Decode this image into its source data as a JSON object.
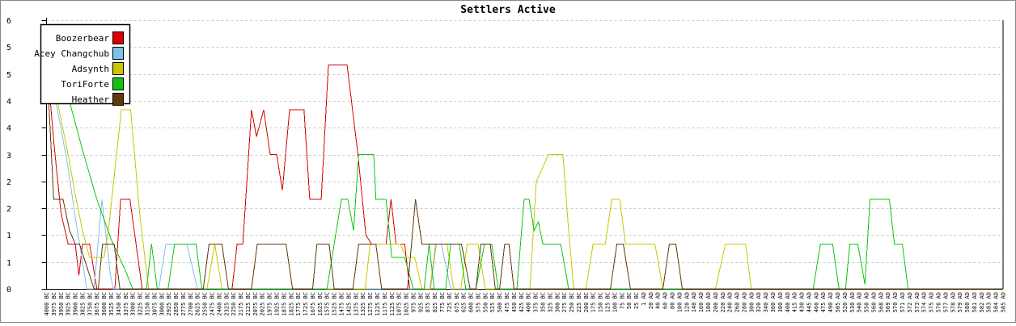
{
  "title": "Settlers Active",
  "chart_data": {
    "type": "line",
    "title": "Settlers Active",
    "grid": "horizontal-dashed",
    "legend_position": "top-left",
    "colors": {
      "grid": "#c9c9c9",
      "axis": "#000000",
      "frame": "#888888",
      "background": "#ffffff"
    },
    "y_axis": {
      "min": 0,
      "max": 6,
      "tick_values": [
        0,
        0.6,
        1.2,
        1.8,
        2.4,
        3.0,
        3.6,
        4.2,
        4.8,
        5.4,
        6.0
      ],
      "tick_labels": [
        "0",
        "1",
        "1",
        "2",
        "2",
        "3",
        "4",
        "4",
        "5",
        "5",
        "6"
      ]
    },
    "x_tick_labels": [
      "4000 BC",
      "3975 BC",
      "3950 BC",
      "3925 BC",
      "3900 BC",
      "3825 BC",
      "3750 BC",
      "3675 BC",
      "3600 BC",
      "3525 BC",
      "3450 BC",
      "3375 BC",
      "3300 BC",
      "3225 BC",
      "3150 BC",
      "3075 BC",
      "3000 BC",
      "2925 BC",
      "2850 BC",
      "2775 BC",
      "2700 BC",
      "2625 BC",
      "2550 BC",
      "2475 BC",
      "2400 BC",
      "2325 BC",
      "2250 BC",
      "2175 BC",
      "2125 BC",
      "2075 BC",
      "2025 BC",
      "1975 BC",
      "1925 BC",
      "1875 BC",
      "1825 BC",
      "1775 BC",
      "1725 BC",
      "1675 BC",
      "1625 BC",
      "1575 BC",
      "1525 BC",
      "1475 BC",
      "1425 BC",
      "1375 BC",
      "1325 BC",
      "1275 BC",
      "1225 BC",
      "1175 BC",
      "1125 BC",
      "1075 BC",
      "1025 BC",
      "975 BC",
      "925 BC",
      "875 BC",
      "825 BC",
      "775 BC",
      "725 BC",
      "675 BC",
      "625 BC",
      "600 BC",
      "575 BC",
      "550 BC",
      "525 BC",
      "500 BC",
      "475 BC",
      "450 BC",
      "425 BC",
      "400 BC",
      "375 BC",
      "350 BC",
      "325 BC",
      "300 BC",
      "275 BC",
      "250 BC",
      "225 BC",
      "200 BC",
      "175 BC",
      "150 BC",
      "125 BC",
      "100 BC",
      "75 BC",
      "50 BC",
      "25 BC",
      "1 AD",
      "20 AD",
      "40 AD",
      "60 AD",
      "80 AD",
      "100 AD",
      "120 AD",
      "140 AD",
      "160 AD",
      "180 AD",
      "200 AD",
      "220 AD",
      "240 AD",
      "260 AD",
      "280 AD",
      "300 AD",
      "320 AD",
      "340 AD",
      "360 AD",
      "380 AD",
      "400 AD",
      "415 AD",
      "430 AD",
      "445 AD",
      "460 AD",
      "475 AD",
      "490 AD",
      "505 AD",
      "520 AD",
      "530 AD",
      "540 AD",
      "550 AD",
      "560 AD",
      "568 AD",
      "569 AD",
      "570 AD",
      "571 AD",
      "572 AD",
      "573 AD",
      "574 AD",
      "575 AD",
      "576 AD",
      "577 AD",
      "578 AD",
      "579 AD",
      "580 AD",
      "581 AD",
      "582 AD",
      "583 AD",
      "584 AD",
      "585 AD"
    ],
    "series": [
      {
        "name": "Boozerbear",
        "color": "#dd0000",
        "points": [
          [
            0,
            5.2
          ],
          [
            1,
            3.3
          ],
          [
            2,
            1.7
          ],
          [
            3,
            1
          ],
          [
            4,
            1
          ],
          [
            4.5,
            0.3
          ],
          [
            5,
            1
          ],
          [
            6,
            1
          ],
          [
            7,
            0
          ],
          [
            9.5,
            0
          ],
          [
            10.3,
            2
          ],
          [
            11.6,
            2
          ],
          [
            13.3,
            0
          ],
          [
            25.8,
            0
          ],
          [
            26.5,
            1
          ],
          [
            27.3,
            1
          ],
          [
            28.5,
            4
          ],
          [
            29.2,
            3.4
          ],
          [
            30.2,
            4
          ],
          [
            31.1,
            3
          ],
          [
            32,
            3
          ],
          [
            32.8,
            2.2
          ],
          [
            33.8,
            4
          ],
          [
            35.8,
            4
          ],
          [
            36.6,
            2
          ],
          [
            38.2,
            2
          ],
          [
            39.2,
            5
          ],
          [
            41.8,
            5
          ],
          [
            43.3,
            3
          ],
          [
            44.4,
            1.2
          ],
          [
            45.2,
            1
          ],
          [
            47.2,
            1
          ],
          [
            47.9,
            2
          ],
          [
            48.6,
            1
          ],
          [
            49.8,
            1
          ],
          [
            50.5,
            0
          ],
          [
            54,
            0
          ]
        ]
      },
      {
        "name": "Acey Changchub",
        "color": "#7ec2ea",
        "points": [
          [
            0,
            5.15
          ],
          [
            1,
            4.4
          ],
          [
            2,
            3.6
          ],
          [
            3,
            2.7
          ],
          [
            4,
            1.6
          ],
          [
            5,
            0.6
          ],
          [
            5.6,
            0
          ],
          [
            6.6,
            0
          ],
          [
            7.7,
            2
          ],
          [
            8.9,
            0.3
          ],
          [
            9.3,
            0
          ],
          [
            15.6,
            0
          ],
          [
            16.6,
            1
          ],
          [
            19.5,
            1
          ],
          [
            21,
            0
          ],
          [
            53.4,
            0
          ],
          [
            54.2,
            1
          ],
          [
            54.9,
            1
          ],
          [
            56.2,
            0
          ],
          [
            60,
            0
          ]
        ]
      },
      {
        "name": "Adsynth",
        "color": "#c8c800",
        "points": [
          [
            0,
            5.3
          ],
          [
            1,
            4.6
          ],
          [
            2,
            3.8
          ],
          [
            3,
            3
          ],
          [
            4,
            2.1
          ],
          [
            5,
            1.3
          ],
          [
            6,
            0.7
          ],
          [
            8,
            0.7
          ],
          [
            8.6,
            1.3
          ],
          [
            10.4,
            4
          ],
          [
            11.7,
            4
          ],
          [
            13,
            1.6
          ],
          [
            14.2,
            0
          ],
          [
            22.3,
            0
          ],
          [
            23.4,
            1
          ],
          [
            24.4,
            0
          ],
          [
            44.3,
            0
          ],
          [
            45,
            1
          ],
          [
            49.2,
            1
          ],
          [
            50,
            0.7
          ],
          [
            51.2,
            0.7
          ],
          [
            52.2,
            0
          ],
          [
            53.3,
            0
          ],
          [
            54.1,
            1
          ],
          [
            55.7,
            1
          ],
          [
            56.6,
            0
          ],
          [
            57.6,
            0
          ],
          [
            58.5,
            1
          ],
          [
            60,
            1
          ],
          [
            61,
            0
          ],
          [
            67.2,
            0
          ],
          [
            68.1,
            2.4
          ],
          [
            69.8,
            3
          ],
          [
            71.8,
            3
          ],
          [
            72.5,
            1.5
          ],
          [
            73.3,
            0
          ],
          [
            75,
            0
          ],
          [
            76,
            1
          ],
          [
            77.7,
            1
          ],
          [
            78.6,
            2
          ],
          [
            79.7,
            2
          ],
          [
            80.5,
            1
          ],
          [
            84.6,
            1
          ],
          [
            85.7,
            0
          ],
          [
            93,
            0
          ],
          [
            94.4,
            1
          ],
          [
            97.2,
            1
          ],
          [
            98,
            0
          ],
          [
            133,
            0
          ]
        ]
      },
      {
        "name": "ToriForte",
        "color": "#12c412",
        "points": [
          [
            0,
            5.3
          ],
          [
            1.6,
            5.3
          ],
          [
            3,
            4.3
          ],
          [
            5,
            3.1
          ],
          [
            7,
            2
          ],
          [
            9,
            1.1
          ],
          [
            11,
            0.4
          ],
          [
            12,
            0
          ],
          [
            13.9,
            0
          ],
          [
            14.6,
            1
          ],
          [
            15.4,
            0
          ],
          [
            16.9,
            0
          ],
          [
            17.8,
            1
          ],
          [
            20.8,
            1
          ],
          [
            21.6,
            0
          ],
          [
            39,
            0
          ],
          [
            41,
            2
          ],
          [
            41.9,
            2
          ],
          [
            42.7,
            1.3
          ],
          [
            43.4,
            3
          ],
          [
            45.5,
            3
          ],
          [
            45.8,
            2
          ],
          [
            47.2,
            2
          ],
          [
            48,
            0.7
          ],
          [
            49.8,
            0.7
          ],
          [
            51,
            0
          ],
          [
            52.5,
            0
          ],
          [
            53.2,
            1
          ],
          [
            53.9,
            0
          ],
          [
            55.5,
            0
          ],
          [
            56.2,
            1
          ],
          [
            57.4,
            1
          ],
          [
            58.3,
            0
          ],
          [
            59.7,
            0
          ],
          [
            60.9,
            1
          ],
          [
            61.9,
            1
          ],
          [
            62.8,
            0
          ],
          [
            65.4,
            0
          ],
          [
            66.4,
            2
          ],
          [
            67.1,
            2
          ],
          [
            67.8,
            1.3
          ],
          [
            68.4,
            1.5
          ],
          [
            69,
            1
          ],
          [
            71.5,
            1
          ],
          [
            72.6,
            0
          ],
          [
            106.6,
            0
          ],
          [
            107.6,
            1
          ],
          [
            109.3,
            1
          ],
          [
            110.2,
            0
          ],
          [
            111.1,
            0
          ],
          [
            111.7,
            1
          ],
          [
            112.8,
            1
          ],
          [
            113.8,
            0.1
          ],
          [
            114.5,
            2
          ],
          [
            117.2,
            2
          ],
          [
            117.9,
            1
          ],
          [
            119,
            1
          ],
          [
            119.8,
            0
          ],
          [
            133,
            0
          ]
        ]
      },
      {
        "name": "Heather",
        "color": "#5e3a0e",
        "points": [
          [
            0,
            5.15
          ],
          [
            0.5,
            3.6
          ],
          [
            1,
            2
          ],
          [
            2.3,
            2
          ],
          [
            3.2,
            1.3
          ],
          [
            4,
            1
          ],
          [
            4.6,
            1
          ],
          [
            5.4,
            0.6
          ],
          [
            6.6,
            0
          ],
          [
            7.2,
            0
          ],
          [
            7.8,
            1
          ],
          [
            9.4,
            1
          ],
          [
            10.2,
            0
          ],
          [
            21.8,
            0
          ],
          [
            22.6,
            1
          ],
          [
            24.4,
            1
          ],
          [
            25.3,
            0
          ],
          [
            28.5,
            0
          ],
          [
            29.3,
            1
          ],
          [
            33.3,
            1
          ],
          [
            34.2,
            0
          ],
          [
            37,
            0
          ],
          [
            37.6,
            1
          ],
          [
            39.3,
            1
          ],
          [
            40,
            0
          ],
          [
            42.6,
            0
          ],
          [
            43.4,
            1
          ],
          [
            45.8,
            1
          ],
          [
            46.6,
            0
          ],
          [
            50.2,
            0
          ],
          [
            51.3,
            2
          ],
          [
            52.2,
            1
          ],
          [
            57.7,
            1
          ],
          [
            58.9,
            0
          ],
          [
            59.7,
            0
          ],
          [
            60.4,
            1
          ],
          [
            61.7,
            1
          ],
          [
            62.4,
            0
          ],
          [
            63,
            0
          ],
          [
            63.7,
            1
          ],
          [
            64.3,
            1
          ],
          [
            65,
            0
          ],
          [
            78.4,
            0
          ],
          [
            79.3,
            1
          ],
          [
            80.2,
            1
          ],
          [
            81.2,
            0
          ],
          [
            85.7,
            0
          ],
          [
            86.6,
            1
          ],
          [
            87.5,
            1
          ],
          [
            88.4,
            0
          ],
          [
            133,
            0
          ]
        ]
      }
    ],
    "legend": [
      {
        "label": "Boozerbear",
        "color": "#dd0000"
      },
      {
        "label": "Acey Changchub",
        "color": "#7ec2ea"
      },
      {
        "label": "Adsynth",
        "color": "#c8c800"
      },
      {
        "label": "ToriForte",
        "color": "#12c412"
      },
      {
        "label": "Heather",
        "color": "#5e3a0e"
      }
    ]
  }
}
